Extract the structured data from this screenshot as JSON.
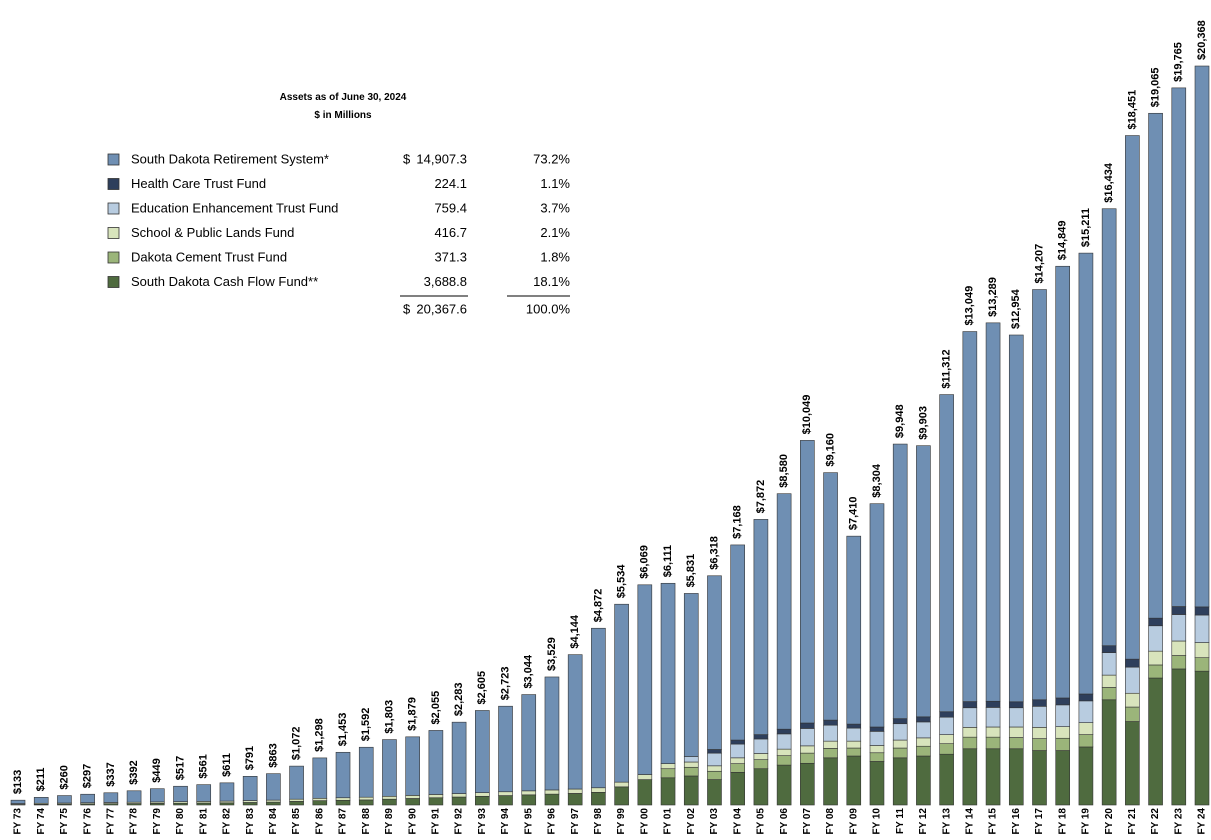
{
  "chart_data": {
    "type": "stacked_bar",
    "summary": {
      "title": "Assets as of June 30, 2024",
      "subtitle": "$ in Millions",
      "currency": "$",
      "rows": [
        {
          "amount": "14,907.3",
          "percent": "73.2%"
        },
        {
          "amount": "224.1",
          "percent": "1.1%"
        },
        {
          "amount": "759.4",
          "percent": "3.7%"
        },
        {
          "amount": "416.7",
          "percent": "2.1%"
        },
        {
          "amount": "371.3",
          "percent": "1.8%"
        },
        {
          "amount": "3,688.8",
          "percent": "18.1%"
        }
      ],
      "total_amount": "20,367.6",
      "total_percent": "100.0%"
    },
    "categories": [
      "FY 73",
      "FY 74",
      "FY 75",
      "FY 76",
      "FY 77",
      "FY 78",
      "FY 79",
      "FY 80",
      "FY 81",
      "FY 82",
      "FY 83",
      "FY 84",
      "FY 85",
      "FY 86",
      "FY 87",
      "FY 88",
      "FY 89",
      "FY 90",
      "FY 91",
      "FY 92",
      "FY 93",
      "FY 94",
      "FY 95",
      "FY 96",
      "FY 97",
      "FY 98",
      "FY 99",
      "FY 00",
      "FY 01",
      "FY 02",
      "FY 03",
      "FY 04",
      "FY 05",
      "FY 06",
      "FY 07",
      "FY 08",
      "FY 09",
      "FY 10",
      "FY 11",
      "FY 12",
      "FY 13",
      "FY 14",
      "FY 15",
      "FY 16",
      "FY 17",
      "FY 18",
      "FY 19",
      "FY 20",
      "FY 21",
      "FY 22",
      "FY 23",
      "FY 24"
    ],
    "totals": {
      "values": [
        133,
        211,
        260,
        297,
        337,
        392,
        449,
        517,
        561,
        611,
        791,
        863,
        1072,
        1298,
        1453,
        1592,
        1803,
        1879,
        2055,
        2283,
        2605,
        2723,
        3044,
        3529,
        4144,
        4872,
        5534,
        6069,
        6111,
        5831,
        6318,
        7168,
        7872,
        8580,
        10049,
        9160,
        7410,
        8304,
        9948,
        9903,
        11312,
        13049,
        13289,
        12954,
        14207,
        14849,
        15211,
        16434,
        18451,
        19065,
        19765,
        20368
      ],
      "value_labels": [
        "$133",
        "$211",
        "$260",
        "$297",
        "$337",
        "$392",
        "$449",
        "$517",
        "$561",
        "$611",
        "$791",
        "$863",
        "$1,072",
        "$1,298",
        "$1,453",
        "$1,592",
        "$1,803",
        "$1,879",
        "$2,055",
        "$2,283",
        "$2,605",
        "$2,723",
        "$3,044",
        "$3,529",
        "$4,144",
        "$4,872",
        "$5,534",
        "$6,069",
        "$6,111",
        "$5,831",
        "$6,318",
        "$7,168",
        "$7,872",
        "$8,580",
        "$10,049",
        "$9,160",
        "$7,410",
        "$8,304",
        "$9,948",
        "$9,903",
        "$11,312",
        "$13,049",
        "$13,289",
        "$12,954",
        "$14,207",
        "$14,849",
        "$15,211",
        "$16,434",
        "$18,451",
        "$19,065",
        "$19,765",
        "$20,368"
      ]
    },
    "series": [
      {
        "name": "South Dakota Retirement System*",
        "color": "#6f8fb3",
        "values": [
          93,
          163,
          205,
          235,
          267,
          314,
          364,
          425,
          461,
          503,
          669,
          728,
          912,
          1113,
          1253,
          1377,
          1563,
          1614,
          1765,
          1968,
          2265,
          2358,
          2654,
          3114,
          3704,
          4397,
          4904,
          5229,
          4971,
          4496,
          4788,
          5378,
          5932,
          6490,
          7789,
          6820,
          5180,
          6154,
          7568,
          7473,
          8742,
          10199,
          10429,
          10109,
          11307,
          11899,
          12151,
          12044,
          14431,
          13915,
          14295,
          14907.3
        ]
      },
      {
        "name": "Health Care Trust Fund",
        "color": "#2e3f5c",
        "values": [
          0,
          0,
          0,
          0,
          0,
          0,
          0,
          0,
          0,
          0,
          0,
          0,
          0,
          0,
          0,
          0,
          0,
          0,
          0,
          0,
          0,
          0,
          0,
          0,
          0,
          0,
          0,
          0,
          0,
          0,
          100,
          110,
          120,
          130,
          150,
          140,
          110,
          120,
          140,
          140,
          150,
          170,
          170,
          165,
          180,
          190,
          190,
          190,
          220,
          210,
          220,
          224.1
        ]
      },
      {
        "name": "Education Enhancement Trust Fund",
        "color": "#b8cce0",
        "values": [
          0,
          0,
          0,
          0,
          0,
          0,
          0,
          0,
          0,
          0,
          0,
          0,
          0,
          0,
          0,
          0,
          0,
          0,
          0,
          0,
          0,
          0,
          0,
          0,
          0,
          0,
          0,
          0,
          0,
          150,
          350,
          380,
          400,
          420,
          480,
          440,
          360,
          390,
          450,
          440,
          480,
          540,
          540,
          530,
          580,
          600,
          600,
          620,
          720,
          700,
          730,
          759.4
        ]
      },
      {
        "name": "School & Public Lands Fund",
        "color": "#d8e4bc",
        "values": [
          25,
          28,
          30,
          32,
          35,
          38,
          40,
          42,
          45,
          48,
          52,
          55,
          60,
          65,
          70,
          75,
          80,
          85,
          90,
          95,
          100,
          105,
          110,
          115,
          120,
          125,
          130,
          140,
          140,
          145,
          150,
          160,
          170,
          180,
          200,
          200,
          190,
          200,
          220,
          230,
          250,
          270,
          280,
          290,
          310,
          320,
          330,
          340,
          380,
          380,
          400,
          416.7
        ]
      },
      {
        "name": "Dakota Cement Trust Fund",
        "color": "#9bb57a",
        "values": [
          0,
          0,
          0,
          0,
          0,
          0,
          0,
          0,
          0,
          0,
          0,
          0,
          0,
          0,
          0,
          0,
          0,
          0,
          0,
          0,
          0,
          0,
          0,
          0,
          0,
          0,
          0,
          0,
          250,
          240,
          230,
          240,
          250,
          260,
          280,
          260,
          220,
          240,
          270,
          270,
          290,
          320,
          320,
          310,
          330,
          340,
          340,
          340,
          400,
          360,
          370,
          371.3
        ]
      },
      {
        "name": "South Dakota Cash Flow Fund**",
        "color": "#4f6b3f",
        "values": [
          15,
          20,
          25,
          30,
          35,
          40,
          45,
          50,
          55,
          60,
          70,
          80,
          100,
          120,
          130,
          140,
          160,
          180,
          200,
          220,
          240,
          260,
          280,
          300,
          320,
          350,
          500,
          700,
          750,
          800,
          700,
          900,
          1000,
          1100,
          1150,
          1300,
          1350,
          1200,
          1300,
          1350,
          1400,
          1550,
          1550,
          1550,
          1500,
          1500,
          1600,
          2900,
          2300,
          3500,
          3750,
          3688.8
        ]
      }
    ]
  }
}
